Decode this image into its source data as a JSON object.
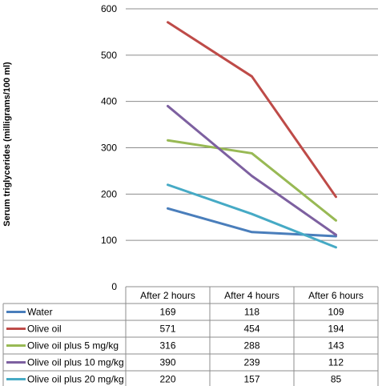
{
  "chart_data": {
    "type": "line",
    "title": "",
    "xlabel": "",
    "ylabel": "Serum triglycerides (milligrams/100 ml)",
    "ylim": [
      0,
      600
    ],
    "yticks": [
      0,
      100,
      200,
      300,
      400,
      500,
      600
    ],
    "grid": true,
    "legend": "table below chart",
    "categories": [
      "After 2 hours",
      "After 4 hours",
      "After 6 hours"
    ],
    "series": [
      {
        "name": "Water",
        "color": "#4a7ebb",
        "values": [
          169,
          118,
          109
        ]
      },
      {
        "name": "Olive oil",
        "color": "#be4b48",
        "values": [
          571,
          454,
          194
        ]
      },
      {
        "name": "Olive oil plus 5 mg/kg",
        "color": "#98b954",
        "values": [
          316,
          288,
          143
        ]
      },
      {
        "name": "Olive oil plus 10 mg/kg",
        "color": "#7d60a0",
        "values": [
          390,
          239,
          112
        ]
      },
      {
        "name": "Olive oil plus 20 mg/kg",
        "color": "#46aac5",
        "values": [
          220,
          157,
          85
        ]
      }
    ]
  }
}
